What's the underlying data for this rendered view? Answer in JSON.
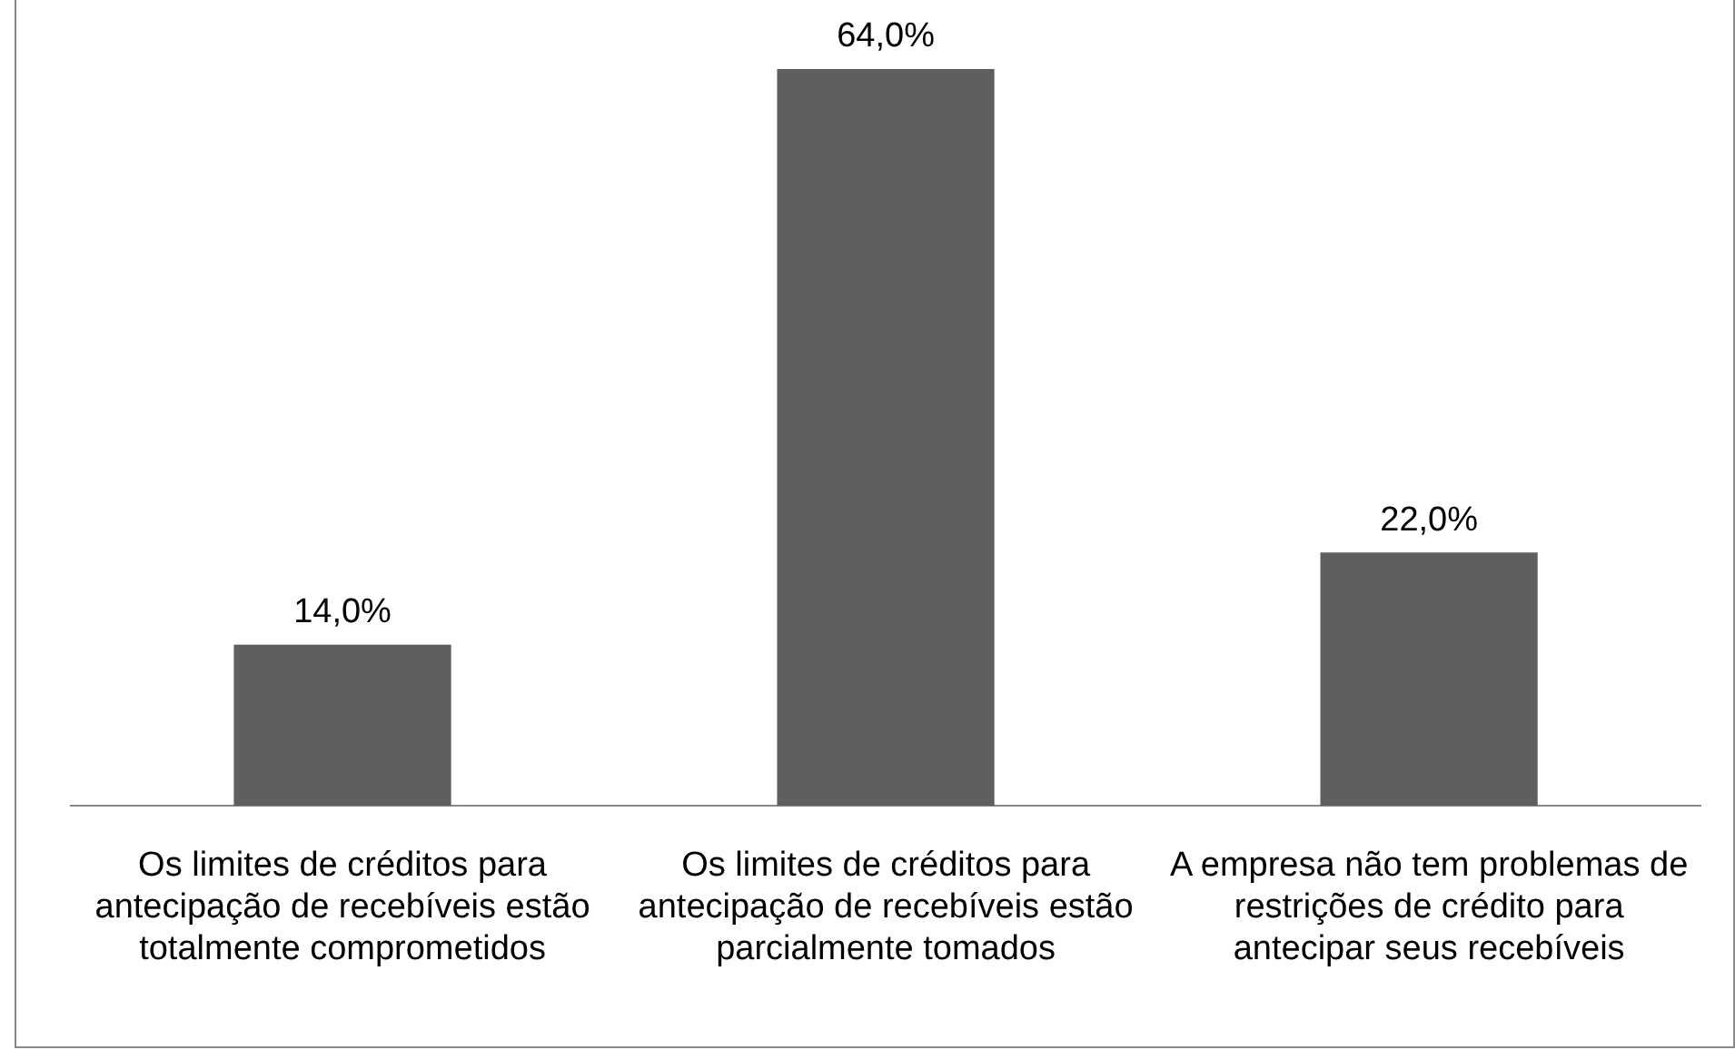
{
  "chart_data": {
    "type": "bar",
    "categories": [
      "Os limites de créditos para antecipação de recebíveis estão totalmente comprometidos",
      "Os limites de créditos para antecipação de recebíveis estão parcialmente tomados",
      "A empresa não tem problemas de restrições de crédito para antecipar seus recebíveis"
    ],
    "values": [
      14,
      64,
      22
    ],
    "value_labels": [
      "14,0%",
      "64,0%",
      "22,0%"
    ],
    "color": "#5f5f5f",
    "grid": false,
    "legend": false
  }
}
